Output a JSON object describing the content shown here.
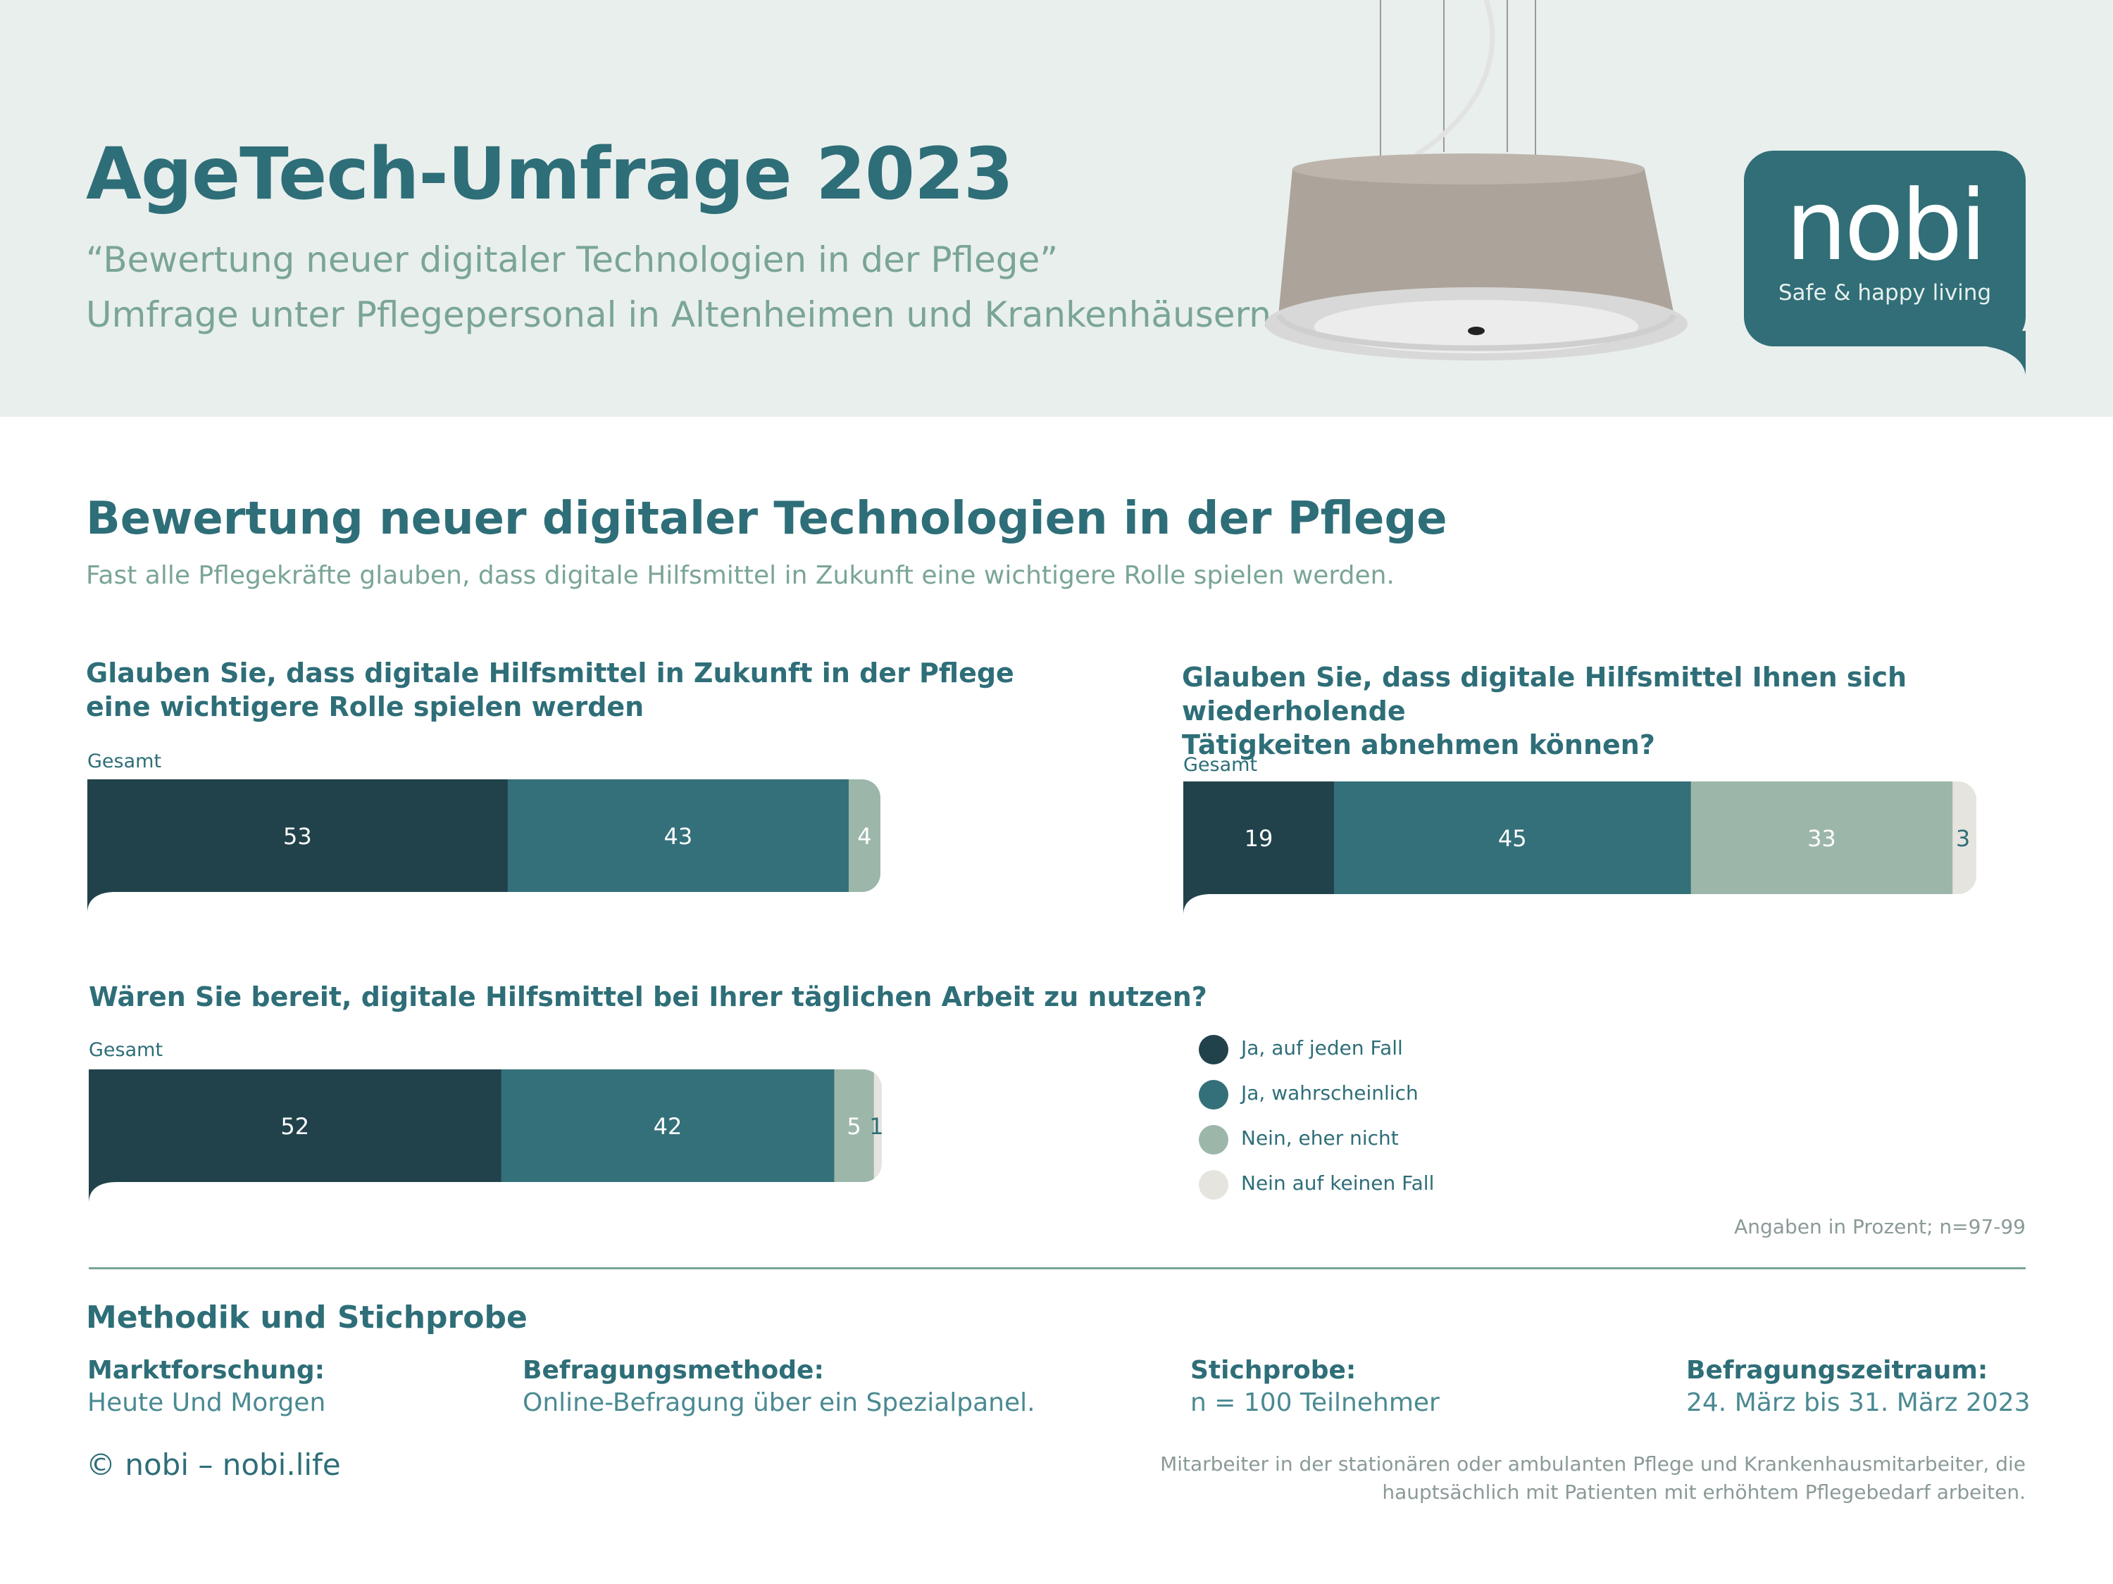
{
  "header": {
    "title": "AgeTech-Umfrage 2023",
    "quote": "“Bewertung neuer digitaler Technologien in der Pflege”",
    "subtitle": "Umfrage unter Pflegepersonal in Altenheimen und Krankenhäusern"
  },
  "logo": {
    "word": "nobi",
    "tagline": "Safe & happy living"
  },
  "main": {
    "heading": "Bewertung neuer digitaler Technologien in der Pflege",
    "subheading": "Fast alle Pflegekräfte glauben, dass digitale Hilfsmittel in Zukunft eine wichtigere Rolle spielen werden."
  },
  "colors": {
    "ja_auf_jeden_fall": "#21424b",
    "ja_wahrscheinlich": "#347079",
    "nein_eher_nicht": "#9cb7aa",
    "nein_auf_keinen_fall": "#e6e4de",
    "header_bg": "#e9efed",
    "brand": "#316e77"
  },
  "chart_data": [
    {
      "type": "bar",
      "orientation": "horizontal-stacked",
      "title": "Glauben Sie, dass digitale Hilfsmittel in Zukunft in der Pflege eine wichtigere Rolle spielen werden",
      "title_lines": [
        "Glauben Sie, dass digitale Hilfsmittel in Zukunft in der Pflege",
        "eine wichtigere Rolle spielen werden"
      ],
      "categories": [
        "Gesamt"
      ],
      "series": [
        {
          "name": "Ja, auf jeden Fall",
          "values": [
            53
          ]
        },
        {
          "name": "Ja, wahrscheinlich",
          "values": [
            43
          ]
        },
        {
          "name": "Nein, eher nicht",
          "values": [
            4
          ]
        }
      ]
    },
    {
      "type": "bar",
      "orientation": "horizontal-stacked",
      "title": "Glauben Sie, dass digitale Hilfsmittel Ihnen sich wiederholende Tätigkeiten abnehmen können?",
      "title_lines": [
        "Glauben Sie, dass digitale Hilfsmittel Ihnen sich wiederholende",
        "Tätigkeiten abnehmen können?"
      ],
      "categories": [
        "Gesamt"
      ],
      "series": [
        {
          "name": "Ja, auf jeden Fall",
          "values": [
            19
          ]
        },
        {
          "name": "Ja, wahrscheinlich",
          "values": [
            45
          ]
        },
        {
          "name": "Nein, eher nicht",
          "values": [
            33
          ]
        },
        {
          "name": "Nein auf keinen Fall",
          "values": [
            3
          ]
        }
      ]
    },
    {
      "type": "bar",
      "orientation": "horizontal-stacked",
      "title": "Wären Sie bereit, digitale Hilfsmittel bei Ihrer täglichen Arbeit zu nutzen?",
      "title_lines": [
        "Wären Sie bereit, digitale Hilfsmittel bei Ihrer täglichen Arbeit zu nutzen?"
      ],
      "categories": [
        "Gesamt"
      ],
      "series": [
        {
          "name": "Ja, auf jeden Fall",
          "values": [
            52
          ]
        },
        {
          "name": "Ja, wahrscheinlich",
          "values": [
            42
          ]
        },
        {
          "name": "Nein, eher nicht",
          "values": [
            5
          ]
        },
        {
          "name": "Nein auf keinen Fall",
          "values": [
            1
          ]
        }
      ]
    }
  ],
  "legend": [
    "Ja, auf jeden Fall",
    "Ja, wahrscheinlich",
    "Nein, eher nicht",
    "Nein auf keinen Fall"
  ],
  "footnote": "Angaben in Prozent; n=97-99",
  "methodology": {
    "title": "Methodik und Stichprobe",
    "items": [
      {
        "label": "Marktforschung:",
        "value": "Heute Und Morgen"
      },
      {
        "label": "Befragungsmethode:",
        "value": "Online-Befragung über ein Spezialpanel."
      },
      {
        "label": "Stichprobe:",
        "value": "n = 100 Teilnehmer"
      },
      {
        "label": "Befragungszeitraum:",
        "value": "24. März bis 31. März 2023"
      }
    ]
  },
  "copyright": "© nobi – nobi.life",
  "note": "Mitarbeiter in der stationären oder ambulanten Pflege und Krankenhausmitarbeiter, die hauptsächlich mit Patienten mit erhöhtem Pflegebedarf arbeiten."
}
